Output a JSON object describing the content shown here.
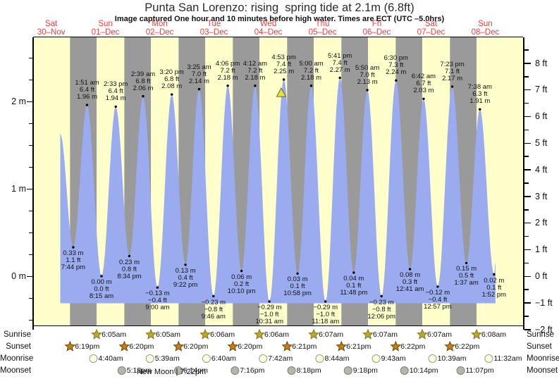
{
  "title": "Punta San Lorenzo: rising  spring tide at 2.1m (6.8ft)",
  "subtitle": "Image captured One hour and 10 minutes before high water. Times are ECT (UTC –5.0hrs)",
  "chart_data": {
    "type": "area",
    "title": "Punta San Lorenzo: rising  spring tide at 2.1m (6.8ft)",
    "days": [
      {
        "name": "Sat",
        "date": "30–Nov"
      },
      {
        "name": "Sun",
        "date": "01–Dec"
      },
      {
        "name": "Mon",
        "date": "02–Dec"
      },
      {
        "name": "Tue",
        "date": "03–Dec"
      },
      {
        "name": "Wed",
        "date": "04–Dec"
      },
      {
        "name": "Thu",
        "date": "05–Dec"
      },
      {
        "name": "Fri",
        "date": "06–Dec"
      },
      {
        "name": "Sat",
        "date": "07–Dec"
      },
      {
        "name": "Sun",
        "date": "08–Dec"
      }
    ],
    "y_axis_left": {
      "unit": "m",
      "major_ticks": [
        0,
        1,
        2
      ],
      "minor_step": 0.25,
      "grid": false
    },
    "y_axis_right": {
      "unit": "ft",
      "major_ticks": [
        -2,
        -1,
        0,
        1,
        2,
        3,
        4,
        5,
        6,
        7,
        8
      ],
      "minor_step": 0.5
    },
    "tide_events": [
      {
        "d": 0,
        "time": "2:00 pm",
        "m": 1.63,
        "type": "edge"
      },
      {
        "d": 0,
        "time": "7:44 pm",
        "m": 0.33,
        "ft": 1.1,
        "type": "low"
      },
      {
        "d": 1,
        "time": "1:51 am",
        "m": 1.96,
        "ft": 6.4,
        "type": "high"
      },
      {
        "d": 1,
        "time": "8:15 am",
        "m": 0.0,
        "ft": 0.0,
        "type": "low"
      },
      {
        "d": 1,
        "time": "2:33 pm",
        "m": 1.94,
        "ft": 6.4,
        "type": "high"
      },
      {
        "d": 1,
        "time": "8:34 pm",
        "m": 0.23,
        "ft": 0.8,
        "type": "low"
      },
      {
        "d": 2,
        "time": "2:39 am",
        "m": 2.06,
        "ft": 6.8,
        "type": "high"
      },
      {
        "d": 2,
        "time": "9:00 am",
        "m": -0.13,
        "ft": -0.4,
        "type": "low"
      },
      {
        "d": 2,
        "time": "3:20 pm",
        "m": 2.08,
        "ft": 6.8,
        "type": "high"
      },
      {
        "d": 2,
        "time": "9:22 pm",
        "m": 0.13,
        "ft": 0.4,
        "type": "low"
      },
      {
        "d": 3,
        "time": "3:25 am",
        "m": 2.14,
        "ft": 7.0,
        "type": "high"
      },
      {
        "d": 3,
        "time": "9:46 am",
        "m": -0.23,
        "ft": -0.8,
        "type": "low"
      },
      {
        "d": 3,
        "time": "4:06 pm",
        "m": 2.18,
        "ft": 7.2,
        "type": "high"
      },
      {
        "d": 3,
        "time": "10:10 pm",
        "m": 0.06,
        "ft": 0.2,
        "type": "low"
      },
      {
        "d": 4,
        "time": "4:12 am",
        "m": 2.18,
        "ft": 7.2,
        "type": "high"
      },
      {
        "d": 4,
        "time": "10:31 am",
        "m": -0.29,
        "ft": -1.0,
        "type": "low"
      },
      {
        "d": 4,
        "time": "4:53 pm",
        "m": 2.25,
        "ft": 7.4,
        "type": "high"
      },
      {
        "d": 4,
        "time": "10:58 pm",
        "m": 0.03,
        "ft": 0.1,
        "type": "low"
      },
      {
        "d": 5,
        "time": "5:00 am",
        "m": 2.18,
        "ft": 7.2,
        "type": "high"
      },
      {
        "d": 5,
        "time": "11:18 am",
        "m": -0.29,
        "ft": -1.0,
        "type": "low"
      },
      {
        "d": 5,
        "time": "5:41 pm",
        "m": 2.27,
        "ft": 7.4,
        "type": "high"
      },
      {
        "d": 5,
        "time": "11:48 pm",
        "m": 0.04,
        "ft": 0.1,
        "type": "low"
      },
      {
        "d": 6,
        "time": "5:50 am",
        "m": 2.13,
        "ft": 7.0,
        "type": "high"
      },
      {
        "d": 6,
        "time": "12:06 pm",
        "m": -0.23,
        "ft": -0.8,
        "type": "low"
      },
      {
        "d": 6,
        "time": "6:30 pm",
        "m": 2.24,
        "ft": 7.3,
        "type": "high"
      },
      {
        "d": 7,
        "time": "12:41 am",
        "m": 0.08,
        "ft": 0.3,
        "type": "low"
      },
      {
        "d": 7,
        "time": "6:42 am",
        "m": 2.03,
        "ft": 6.7,
        "type": "high"
      },
      {
        "d": 7,
        "time": "12:57 pm",
        "m": -0.12,
        "ft": -0.4,
        "type": "low"
      },
      {
        "d": 7,
        "time": "7:23 pm",
        "m": 2.17,
        "ft": 7.1,
        "type": "high"
      },
      {
        "d": 8,
        "time": "1:37 am",
        "m": 0.15,
        "ft": 0.5,
        "type": "low"
      },
      {
        "d": 8,
        "time": "7:38 am",
        "m": 1.91,
        "ft": 6.3,
        "type": "high"
      },
      {
        "d": 8,
        "time": "1:52 pm",
        "m": 0.02,
        "ft": 0.1,
        "type": "low"
      },
      {
        "d": 8,
        "time": "2:30 pm",
        "m": 0.15,
        "type": "edge"
      }
    ],
    "current_marker": {
      "d": 4,
      "time": "3:43 pm",
      "m": 2.1
    }
  },
  "sun_moon": {
    "rows": [
      {
        "id": "sunrise",
        "label": "Sunrise",
        "icon": "sunrise-star-icon",
        "events": [
          {
            "d": 1,
            "t": "6:05am"
          },
          {
            "d": 2,
            "t": "6:05am"
          },
          {
            "d": 3,
            "t": "6:06am"
          },
          {
            "d": 4,
            "t": "6:06am"
          },
          {
            "d": 5,
            "t": "6:07am"
          },
          {
            "d": 6,
            "t": "6:07am"
          },
          {
            "d": 7,
            "t": "6:07am"
          },
          {
            "d": 8,
            "t": "6:08am"
          }
        ]
      },
      {
        "id": "sunset",
        "label": "Sunset",
        "icon": "sunset-star-icon",
        "events": [
          {
            "d": 0,
            "t": "6:19pm"
          },
          {
            "d": 1,
            "t": "6:20pm"
          },
          {
            "d": 2,
            "t": "6:20pm"
          },
          {
            "d": 3,
            "t": "6:20pm"
          },
          {
            "d": 4,
            "t": "6:21pm"
          },
          {
            "d": 5,
            "t": "6:21pm"
          },
          {
            "d": 6,
            "t": "6:22pm"
          },
          {
            "d": 7,
            "t": "6:22pm"
          }
        ]
      },
      {
        "id": "moonrise",
        "label": "Moonrise",
        "icon": "moonrise-circle-icon",
        "events": [
          {
            "d": 1,
            "t": "4:40am"
          },
          {
            "d": 2,
            "t": "5:39am"
          },
          {
            "d": 3,
            "t": "6:40am"
          },
          {
            "d": 4,
            "t": "7:42am"
          },
          {
            "d": 5,
            "t": "8:44am"
          },
          {
            "d": 6,
            "t": "9:43am"
          },
          {
            "d": 7,
            "t": "10:39am"
          },
          {
            "d": 8,
            "t": "11:32am"
          }
        ]
      },
      {
        "id": "moonset",
        "label": "Moonset",
        "icon": "moonset-circle-icon",
        "events": [
          {
            "d": 1,
            "t": "5:13pm"
          },
          {
            "d": 2,
            "t": "6:14pm"
          },
          {
            "d": 3,
            "t": "7:16pm"
          },
          {
            "d": 4,
            "t": "8:18pm"
          },
          {
            "d": 5,
            "t": "9:18pm"
          },
          {
            "d": 6,
            "t": "10:14pm"
          },
          {
            "d": 7,
            "t": "11:07pm"
          }
        ]
      }
    ],
    "new_moon_label": "New Moon | 7:22pm"
  },
  "colors": {
    "day_band": "#ffffcc",
    "night_band": "#9a9a9a",
    "tide_fill": "#9aabf0",
    "day_label_red": "#f93b3b",
    "marker_fill": "#e9e23c",
    "marker_stroke": "#6a6a28",
    "sunrise_star_fill": "#bba832",
    "sunrise_star_stroke": "#84751c",
    "sunset_star_fill": "#c67d12",
    "sunset_star_stroke": "#6e4703",
    "moonrise_fill": "#ffffd9",
    "moonrise_stroke": "#9a9a9a",
    "moonset_fill": "#b5b5ab",
    "moonset_stroke": "#80807a"
  }
}
